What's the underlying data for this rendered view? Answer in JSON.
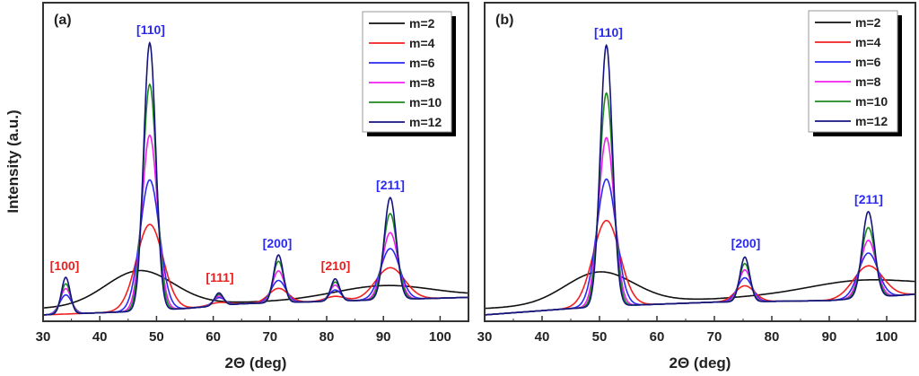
{
  "chart_data": [
    {
      "type": "line",
      "panel_label": "(a)",
      "xlabel": "2Θ (deg)",
      "ylabel": "Intensity (a.u.)",
      "xlim": [
        30,
        105
      ],
      "ylim": [
        0,
        100
      ],
      "xticks": [
        30,
        40,
        50,
        60,
        70,
        80,
        90,
        100
      ],
      "legend_position": "top-right",
      "model": "intensity = interpolated baseline + sum of gaussian peaks [center_deg, height, fwhm_deg]",
      "annotations": [
        {
          "text": "[110]",
          "color": "#2a2af0"
        },
        {
          "text": "[100]",
          "color": "#e82020"
        },
        {
          "text": "[111]",
          "color": "#e82020"
        },
        {
          "text": "[200]",
          "color": "#2a2af0"
        },
        {
          "text": "[210]",
          "color": "#e82020"
        },
        {
          "text": "[211]",
          "color": "#2a2af0"
        }
      ],
      "series": [
        {
          "name": "m=2",
          "color": "#111111",
          "baseline": [
            [
              30,
              4
            ],
            [
              105,
              8
            ]
          ],
          "peaks": [
            [
              47,
              11,
              14
            ],
            [
              90,
              4,
              20
            ]
          ]
        },
        {
          "name": "m=4",
          "color": "#f02020",
          "baseline": [
            [
              30,
              2
            ],
            [
              45,
              3
            ],
            [
              55,
              4
            ],
            [
              65,
              5.5
            ],
            [
              85,
              6.5
            ],
            [
              105,
              7.5
            ]
          ],
          "peaks": [
            [
              48.8,
              27,
              5.5
            ],
            [
              91.2,
              10,
              6
            ],
            [
              71.5,
              4.5,
              4
            ],
            [
              61,
              1,
              4
            ],
            [
              81.5,
              1.5,
              4
            ]
          ]
        },
        {
          "name": "m=6",
          "color": "#2a2af5",
          "baseline": [
            [
              30,
              2
            ],
            [
              45,
              3
            ],
            [
              55,
              4
            ],
            [
              65,
              5.5
            ],
            [
              85,
              6.5
            ],
            [
              105,
              7.5
            ]
          ],
          "peaks": [
            [
              48.8,
              41,
              4
            ],
            [
              91.2,
              16,
              4
            ],
            [
              71.5,
              7,
              3
            ],
            [
              34,
              6,
              2.5
            ],
            [
              61,
              2.5,
              2.5
            ],
            [
              81.5,
              3.5,
              2.5
            ]
          ]
        },
        {
          "name": "m=8",
          "color": "#f020f0",
          "baseline": [
            [
              30,
              2
            ],
            [
              45,
              3
            ],
            [
              55,
              4
            ],
            [
              65,
              5.5
            ],
            [
              85,
              6.5
            ],
            [
              105,
              7.5
            ]
          ],
          "peaks": [
            [
              48.8,
              55,
              3.2
            ],
            [
              91.2,
              21,
              3.2
            ],
            [
              71.5,
              10,
              2.5
            ],
            [
              34,
              8,
              2.2
            ],
            [
              61,
              3,
              2.2
            ],
            [
              81.5,
              5,
              2.2
            ]
          ]
        },
        {
          "name": "m=10",
          "color": "#1e8a1e",
          "baseline": [
            [
              30,
              2
            ],
            [
              45,
              3
            ],
            [
              55,
              4
            ],
            [
              65,
              5.5
            ],
            [
              85,
              6.5
            ],
            [
              105,
              7.5
            ]
          ],
          "peaks": [
            [
              48.8,
              71,
              2.8
            ],
            [
              91.2,
              27,
              2.8
            ],
            [
              71.5,
              13,
              2.2
            ],
            [
              34,
              9.5,
              2
            ],
            [
              61,
              3.5,
              2
            ],
            [
              81.5,
              6,
              2
            ]
          ]
        },
        {
          "name": "m=12",
          "color": "#141480",
          "baseline": [
            [
              30,
              2
            ],
            [
              45,
              3
            ],
            [
              55,
              4
            ],
            [
              65,
              5.5
            ],
            [
              85,
              6.5
            ],
            [
              105,
              7.5
            ]
          ],
          "peaks": [
            [
              48.8,
              84,
              2.5
            ],
            [
              91.2,
              32,
              2.5
            ],
            [
              71.5,
              15,
              2
            ],
            [
              34,
              11.5,
              1.8
            ],
            [
              61,
              4,
              1.8
            ],
            [
              81.5,
              7,
              1.8
            ]
          ]
        }
      ]
    },
    {
      "type": "line",
      "panel_label": "(b)",
      "xlabel": "2Θ (deg)",
      "xlim": [
        30,
        105
      ],
      "ylim": [
        0,
        100
      ],
      "xticks": [
        30,
        40,
        50,
        60,
        70,
        80,
        90,
        100
      ],
      "legend_position": "top-right",
      "model": "intensity = interpolated baseline + sum of gaussian peaks [center_deg, height, fwhm_deg]",
      "annotations": [
        {
          "text": "[110]",
          "color": "#2a2af0"
        },
        {
          "text": "[200]",
          "color": "#2a2af0"
        },
        {
          "text": "[211]",
          "color": "#2a2af0"
        }
      ],
      "series": [
        {
          "name": "m=2",
          "color": "#111111",
          "baseline": [
            [
              30,
              4
            ],
            [
              70,
              7
            ],
            [
              105,
              11
            ]
          ],
          "peaks": [
            [
              50,
              10,
              14
            ],
            [
              95,
              3,
              20
            ]
          ]
        },
        {
          "name": "m=4",
          "color": "#f02020",
          "baseline": [
            [
              30,
              2
            ],
            [
              45,
              4
            ],
            [
              55,
              5
            ],
            [
              70,
              6
            ],
            [
              90,
              6.5
            ],
            [
              105,
              8.5
            ]
          ],
          "peaks": [
            [
              51.2,
              27,
              5.5
            ],
            [
              96.8,
              10,
              6
            ],
            [
              75.3,
              5,
              4
            ]
          ]
        },
        {
          "name": "m=6",
          "color": "#2a2af5",
          "baseline": [
            [
              30,
              2
            ],
            [
              45,
              4
            ],
            [
              55,
              5
            ],
            [
              70,
              6
            ],
            [
              90,
              6.5
            ],
            [
              105,
              8.5
            ]
          ],
          "peaks": [
            [
              51.2,
              40,
              4
            ],
            [
              96.8,
              14,
              4
            ],
            [
              75.3,
              7.5,
              3
            ]
          ]
        },
        {
          "name": "m=8",
          "color": "#f020f0",
          "baseline": [
            [
              30,
              2
            ],
            [
              45,
              4
            ],
            [
              55,
              5
            ],
            [
              70,
              6
            ],
            [
              90,
              6.5
            ],
            [
              105,
              8.5
            ]
          ],
          "peaks": [
            [
              51.2,
              53,
              3.2
            ],
            [
              96.8,
              18,
              3.2
            ],
            [
              75.3,
              10,
              2.5
            ]
          ]
        },
        {
          "name": "m=10",
          "color": "#1e8a1e",
          "baseline": [
            [
              30,
              2
            ],
            [
              45,
              4
            ],
            [
              55,
              5
            ],
            [
              70,
              6
            ],
            [
              90,
              6.5
            ],
            [
              105,
              8.5
            ]
          ],
          "peaks": [
            [
              51.2,
              67,
              2.8
            ],
            [
              96.8,
              22,
              2.8
            ],
            [
              75.3,
              12,
              2.2
            ]
          ]
        },
        {
          "name": "m=12",
          "color": "#141480",
          "baseline": [
            [
              30,
              2
            ],
            [
              45,
              4
            ],
            [
              55,
              5
            ],
            [
              70,
              6
            ],
            [
              90,
              6.5
            ],
            [
              105,
              8.5
            ]
          ],
          "peaks": [
            [
              51.2,
              82,
              2.5
            ],
            [
              96.8,
              27,
              2.5
            ],
            [
              75.3,
              14,
              2
            ]
          ]
        }
      ]
    }
  ]
}
